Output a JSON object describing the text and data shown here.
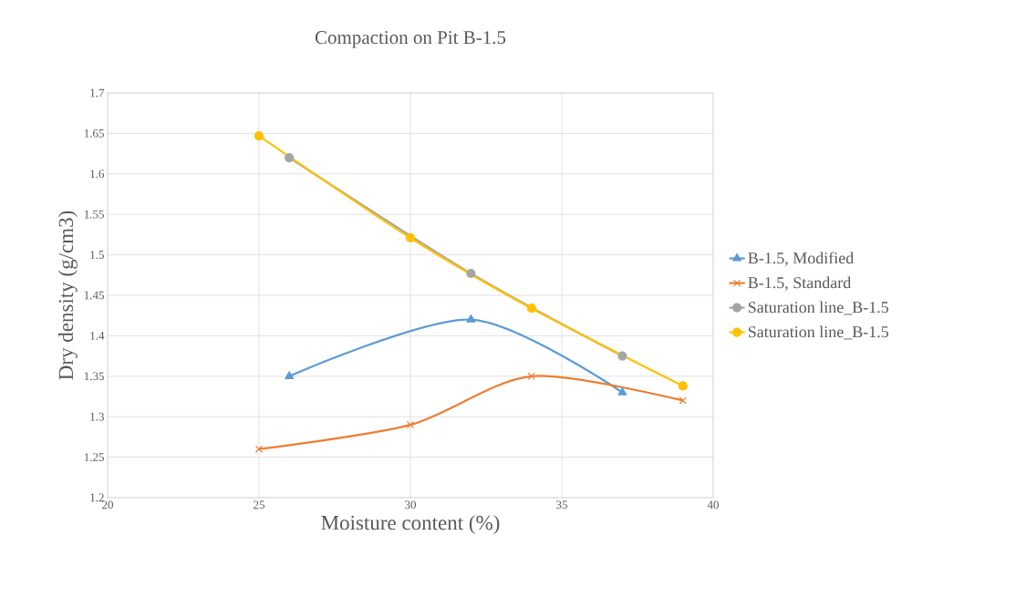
{
  "chart_data": {
    "type": "line",
    "title": "Compaction on Pit B-1.5",
    "xlabel": "Moisture content (%)",
    "ylabel": "Dry density (g/cm3)",
    "xlim": [
      20,
      40
    ],
    "xticks": [
      20,
      25,
      30,
      35,
      40
    ],
    "ylim": [
      1.2,
      1.7
    ],
    "yticks": [
      1.2,
      1.25,
      1.3,
      1.35,
      1.4,
      1.45,
      1.5,
      1.55,
      1.6,
      1.65,
      1.7
    ],
    "grid": true,
    "legend": "right",
    "series": [
      {
        "name": "B-1.5, Modified",
        "color": "#5b9bd5",
        "marker": "triangle",
        "x": [
          26,
          32,
          37
        ],
        "values": [
          1.35,
          1.42,
          1.33
        ]
      },
      {
        "name": "B-1.5, Standard",
        "color": "#ed7d31",
        "marker": "cross",
        "x": [
          25,
          30,
          34,
          39
        ],
        "values": [
          1.26,
          1.29,
          1.35,
          1.32
        ]
      },
      {
        "name": "Saturation line_B-1.5",
        "color": "#a5a5a5",
        "marker": "circle",
        "x": [
          26,
          30,
          32,
          37
        ],
        "values": [
          1.62,
          null,
          1.477,
          1.375
        ]
      },
      {
        "name": "Saturation line_B-1.5",
        "color": "#ffc000",
        "marker": "circle",
        "x": [
          25,
          30,
          34,
          39
        ],
        "values": [
          1.647,
          1.521,
          1.434,
          1.338
        ]
      }
    ]
  }
}
